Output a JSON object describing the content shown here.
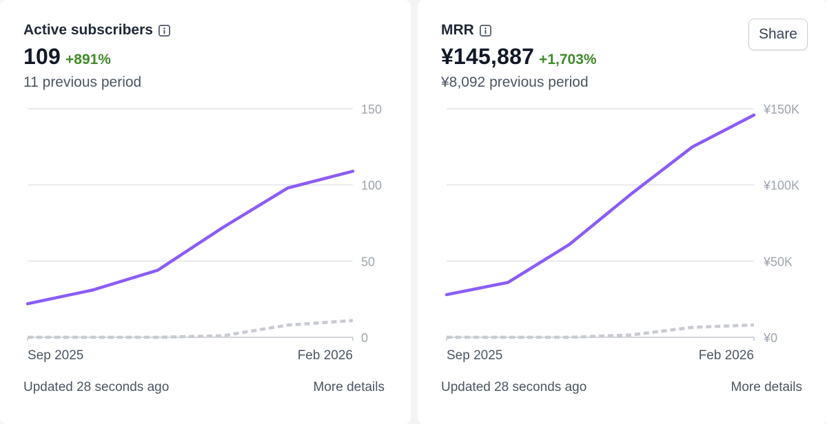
{
  "colors": {
    "primary_line": "#8b5cf6",
    "previous_line": "#c8cbd2",
    "grid": "#d9dde2",
    "tick_text": "#9ca3af",
    "change_positive": "#3f8a2a"
  },
  "cards": [
    {
      "title": "Active subscribers",
      "info_icon": "info-icon",
      "metric": "109",
      "change": "+891%",
      "previous": "11 previous period",
      "footer_updated": "Updated 28 seconds ago",
      "footer_link": "More details"
    },
    {
      "title": "MRR",
      "info_icon": "info-icon",
      "metric": "¥145,887",
      "change": "+1,703%",
      "previous": "¥8,092 previous period",
      "share_label": "Share",
      "footer_updated": "Updated 28 seconds ago",
      "footer_link": "More details"
    }
  ],
  "chart_data": [
    {
      "type": "line",
      "title": "Active subscribers",
      "xlabel": "",
      "ylabel": "",
      "x_tick_labels": [
        "Sep 2025",
        "Feb 2026"
      ],
      "y_tick_labels": [
        "150",
        "100",
        "50",
        "0"
      ],
      "y_ticks": [
        150,
        100,
        50,
        0
      ],
      "ylim": [
        0,
        150
      ],
      "grid": true,
      "y_axis_side": "right",
      "series": [
        {
          "role": "current",
          "style": "solid",
          "values": [
            22,
            31,
            44,
            72,
            98,
            109
          ]
        },
        {
          "role": "previous",
          "style": "dashed",
          "values": [
            0,
            0,
            0,
            1,
            8,
            11
          ]
        }
      ]
    },
    {
      "type": "line",
      "title": "MRR",
      "xlabel": "",
      "ylabel": "",
      "x_tick_labels": [
        "Sep 2025",
        "Feb 2026"
      ],
      "y_tick_labels": [
        "¥150K",
        "¥100K",
        "¥50K",
        "¥0"
      ],
      "y_ticks": [
        150000,
        100000,
        50000,
        0
      ],
      "ylim": [
        0,
        150000
      ],
      "grid": true,
      "y_axis_side": "right",
      "series": [
        {
          "role": "current",
          "style": "solid",
          "values": [
            28000,
            36000,
            61000,
            94000,
            125000,
            145887
          ]
        },
        {
          "role": "previous",
          "style": "dashed",
          "values": [
            0,
            0,
            0,
            1500,
            6500,
            8092
          ]
        }
      ]
    }
  ]
}
